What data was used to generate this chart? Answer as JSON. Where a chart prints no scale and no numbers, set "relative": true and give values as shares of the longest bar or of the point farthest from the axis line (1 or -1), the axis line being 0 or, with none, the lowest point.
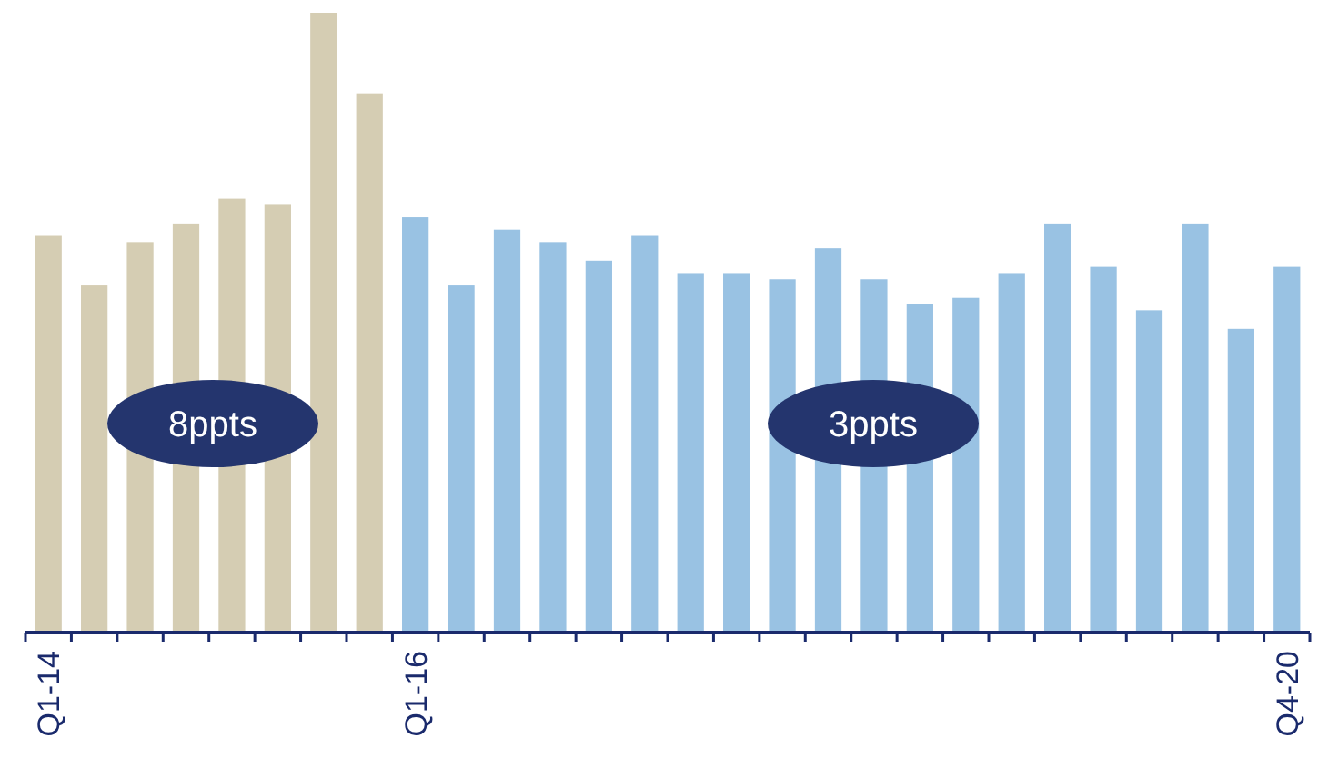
{
  "chart_data": {
    "type": "bar",
    "relative": true,
    "categories": [
      "Q1-14",
      null,
      null,
      null,
      null,
      null,
      null,
      null,
      "Q1-16",
      null,
      null,
      null,
      null,
      null,
      null,
      null,
      null,
      null,
      null,
      null,
      null,
      null,
      null,
      null,
      null,
      null,
      null,
      "Q4-20"
    ],
    "values": [
      0.64,
      0.56,
      0.63,
      0.66,
      0.7,
      0.69,
      1,
      0.87,
      0.67,
      0.56,
      0.65,
      0.63,
      0.6,
      0.64,
      0.58,
      0.58,
      0.57,
      0.62,
      0.57,
      0.53,
      0.54,
      0.58,
      0.66,
      0.59,
      0.52,
      0.66,
      0.49,
      0.59
    ],
    "colors": [
      "#d5cdb3",
      "#d5cdb3",
      "#d5cdb3",
      "#d5cdb3",
      "#d5cdb3",
      "#d5cdb3",
      "#d5cdb3",
      "#d5cdb3",
      "#99c2e3",
      "#99c2e3",
      "#99c2e3",
      "#99c2e3",
      "#99c2e3",
      "#99c2e3",
      "#99c2e3",
      "#99c2e3",
      "#99c2e3",
      "#99c2e3",
      "#99c2e3",
      "#99c2e3",
      "#99c2e3",
      "#99c2e3",
      "#99c2e3",
      "#99c2e3",
      "#99c2e3",
      "#99c2e3",
      "#99c2e3",
      "#99c2e3"
    ],
    "annotations": [
      "8ppts",
      "3ppts"
    ]
  }
}
